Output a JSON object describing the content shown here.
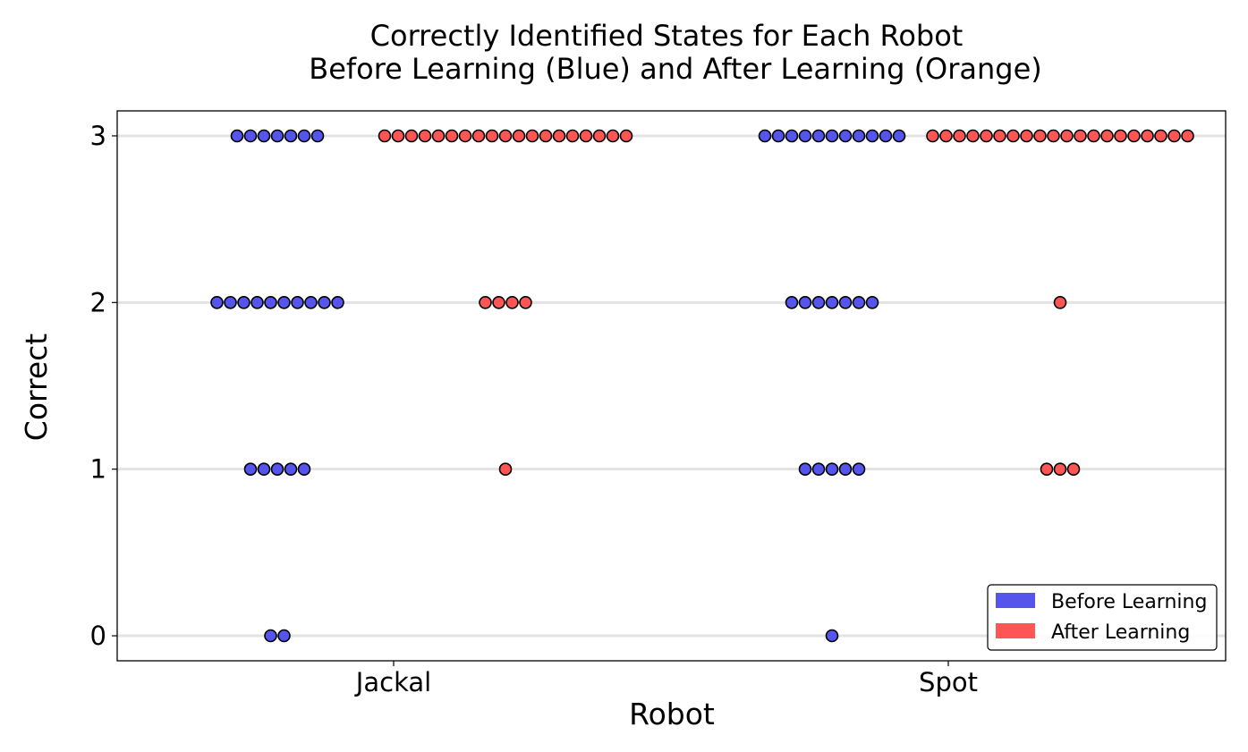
{
  "chart_data": {
    "type": "scatter",
    "title_line1": "Correctly Identified States for Each Robot",
    "title_line2": "Before Learning (Blue) and After Learning (Orange)",
    "xlabel": "Robot",
    "ylabel": "Correct",
    "categories": [
      "Jackal",
      "Spot"
    ],
    "y_ticks": [
      "0",
      "1",
      "2",
      "3"
    ],
    "ylim": [
      -0.15,
      3.15
    ],
    "grid": "horizontal",
    "legend_position": "lower-right",
    "series": [
      {
        "name": "Before Learning",
        "color": "#5555ee",
        "counts": {
          "Jackal": {
            "0": 2,
            "1": 5,
            "2": 10,
            "3": 7
          },
          "Spot": {
            "0": 1,
            "1": 5,
            "2": 7,
            "3": 11
          }
        }
      },
      {
        "name": "After Learning",
        "color": "#ff5555",
        "counts": {
          "Jackal": {
            "0": 0,
            "1": 1,
            "2": 4,
            "3": 19
          },
          "Spot": {
            "0": 0,
            "1": 3,
            "2": 1,
            "3": 20
          }
        }
      }
    ]
  }
}
